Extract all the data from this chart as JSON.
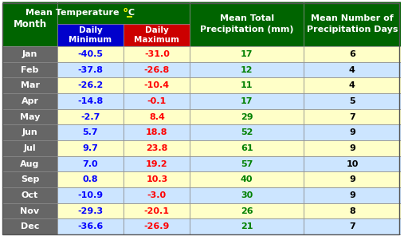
{
  "months": [
    "Jan",
    "Feb",
    "Mar",
    "Apr",
    "May",
    "Jun",
    "Jul",
    "Aug",
    "Sep",
    "Oct",
    "Nov",
    "Dec"
  ],
  "daily_min": [
    -40.5,
    -37.8,
    -26.2,
    -14.8,
    -2.7,
    5.7,
    9.7,
    7.0,
    0.8,
    -10.9,
    -29.3,
    -36.6
  ],
  "daily_max": [
    -31.0,
    -26.8,
    -10.4,
    -0.1,
    8.4,
    18.8,
    23.8,
    19.2,
    10.3,
    -3.0,
    -20.1,
    -26.9
  ],
  "precipitation_mm": [
    17,
    12,
    11,
    17,
    29,
    52,
    61,
    57,
    40,
    30,
    26,
    21
  ],
  "precip_days": [
    6,
    4,
    4,
    5,
    7,
    9,
    9,
    10,
    9,
    9,
    8,
    7
  ],
  "header_bg": "#006400",
  "subheader_min_bg": "#0000CC",
  "subheader_max_bg": "#CC0000",
  "row_bg_odd": "#FFFFC8",
  "row_bg_even": "#CCE5FF",
  "month_col_bg": "#666666",
  "min_text_color": "#0000FF",
  "max_text_color": "#FF0000",
  "precip_text_color": "#008000",
  "days_text_color": "#000000",
  "header_text_color": "#FFFFFF",
  "month_text_color": "#FFFFFF",
  "superscript_color": "#FFFF00"
}
